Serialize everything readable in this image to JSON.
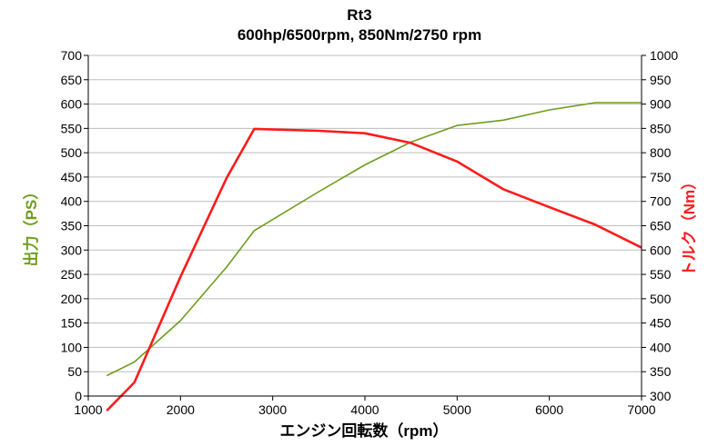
{
  "chart_data": {
    "type": "line",
    "title": "Rt3",
    "subtitle": "600hp/6500rpm, 850Nm/2750 rpm",
    "xlabel": "エンジン回転数（rpm）",
    "ylabel_left": "出力（PS）",
    "ylabel_right": "トルク（Nm）",
    "xlim": [
      1000,
      7000
    ],
    "ylim_left": [
      0,
      700
    ],
    "ylim_right": [
      300,
      1000
    ],
    "x_ticks": [
      1000,
      2000,
      3000,
      4000,
      5000,
      6000,
      7000
    ],
    "y_left_ticks": [
      0,
      50,
      100,
      150,
      200,
      250,
      300,
      350,
      400,
      450,
      500,
      550,
      600,
      650,
      700
    ],
    "y_right_ticks": [
      300,
      350,
      400,
      450,
      500,
      550,
      600,
      650,
      700,
      750,
      800,
      850,
      900,
      950,
      1000
    ],
    "grid": "horizontal",
    "colors": {
      "power": "#6e9d1d",
      "torque": "#ff1a1a"
    },
    "series": [
      {
        "axis": "left",
        "color": "#6e9d1d",
        "x": [
          1200,
          1500,
          2000,
          2500,
          2800,
          3500,
          4000,
          4500,
          5000,
          5500,
          6000,
          6500,
          7000
        ],
        "values": [
          42,
          70,
          155,
          265,
          340,
          420,
          475,
          522,
          556,
          567,
          588,
          603,
          603
        ]
      },
      {
        "axis": "right",
        "color": "#ff1a1a",
        "x": [
          1200,
          1500,
          2000,
          2500,
          2800,
          3500,
          4000,
          4500,
          5000,
          5500,
          6000,
          6500,
          7000
        ],
        "values": [
          270,
          328,
          545,
          748,
          849,
          845,
          840,
          820,
          782,
          725,
          688,
          652,
          605
        ]
      }
    ]
  }
}
